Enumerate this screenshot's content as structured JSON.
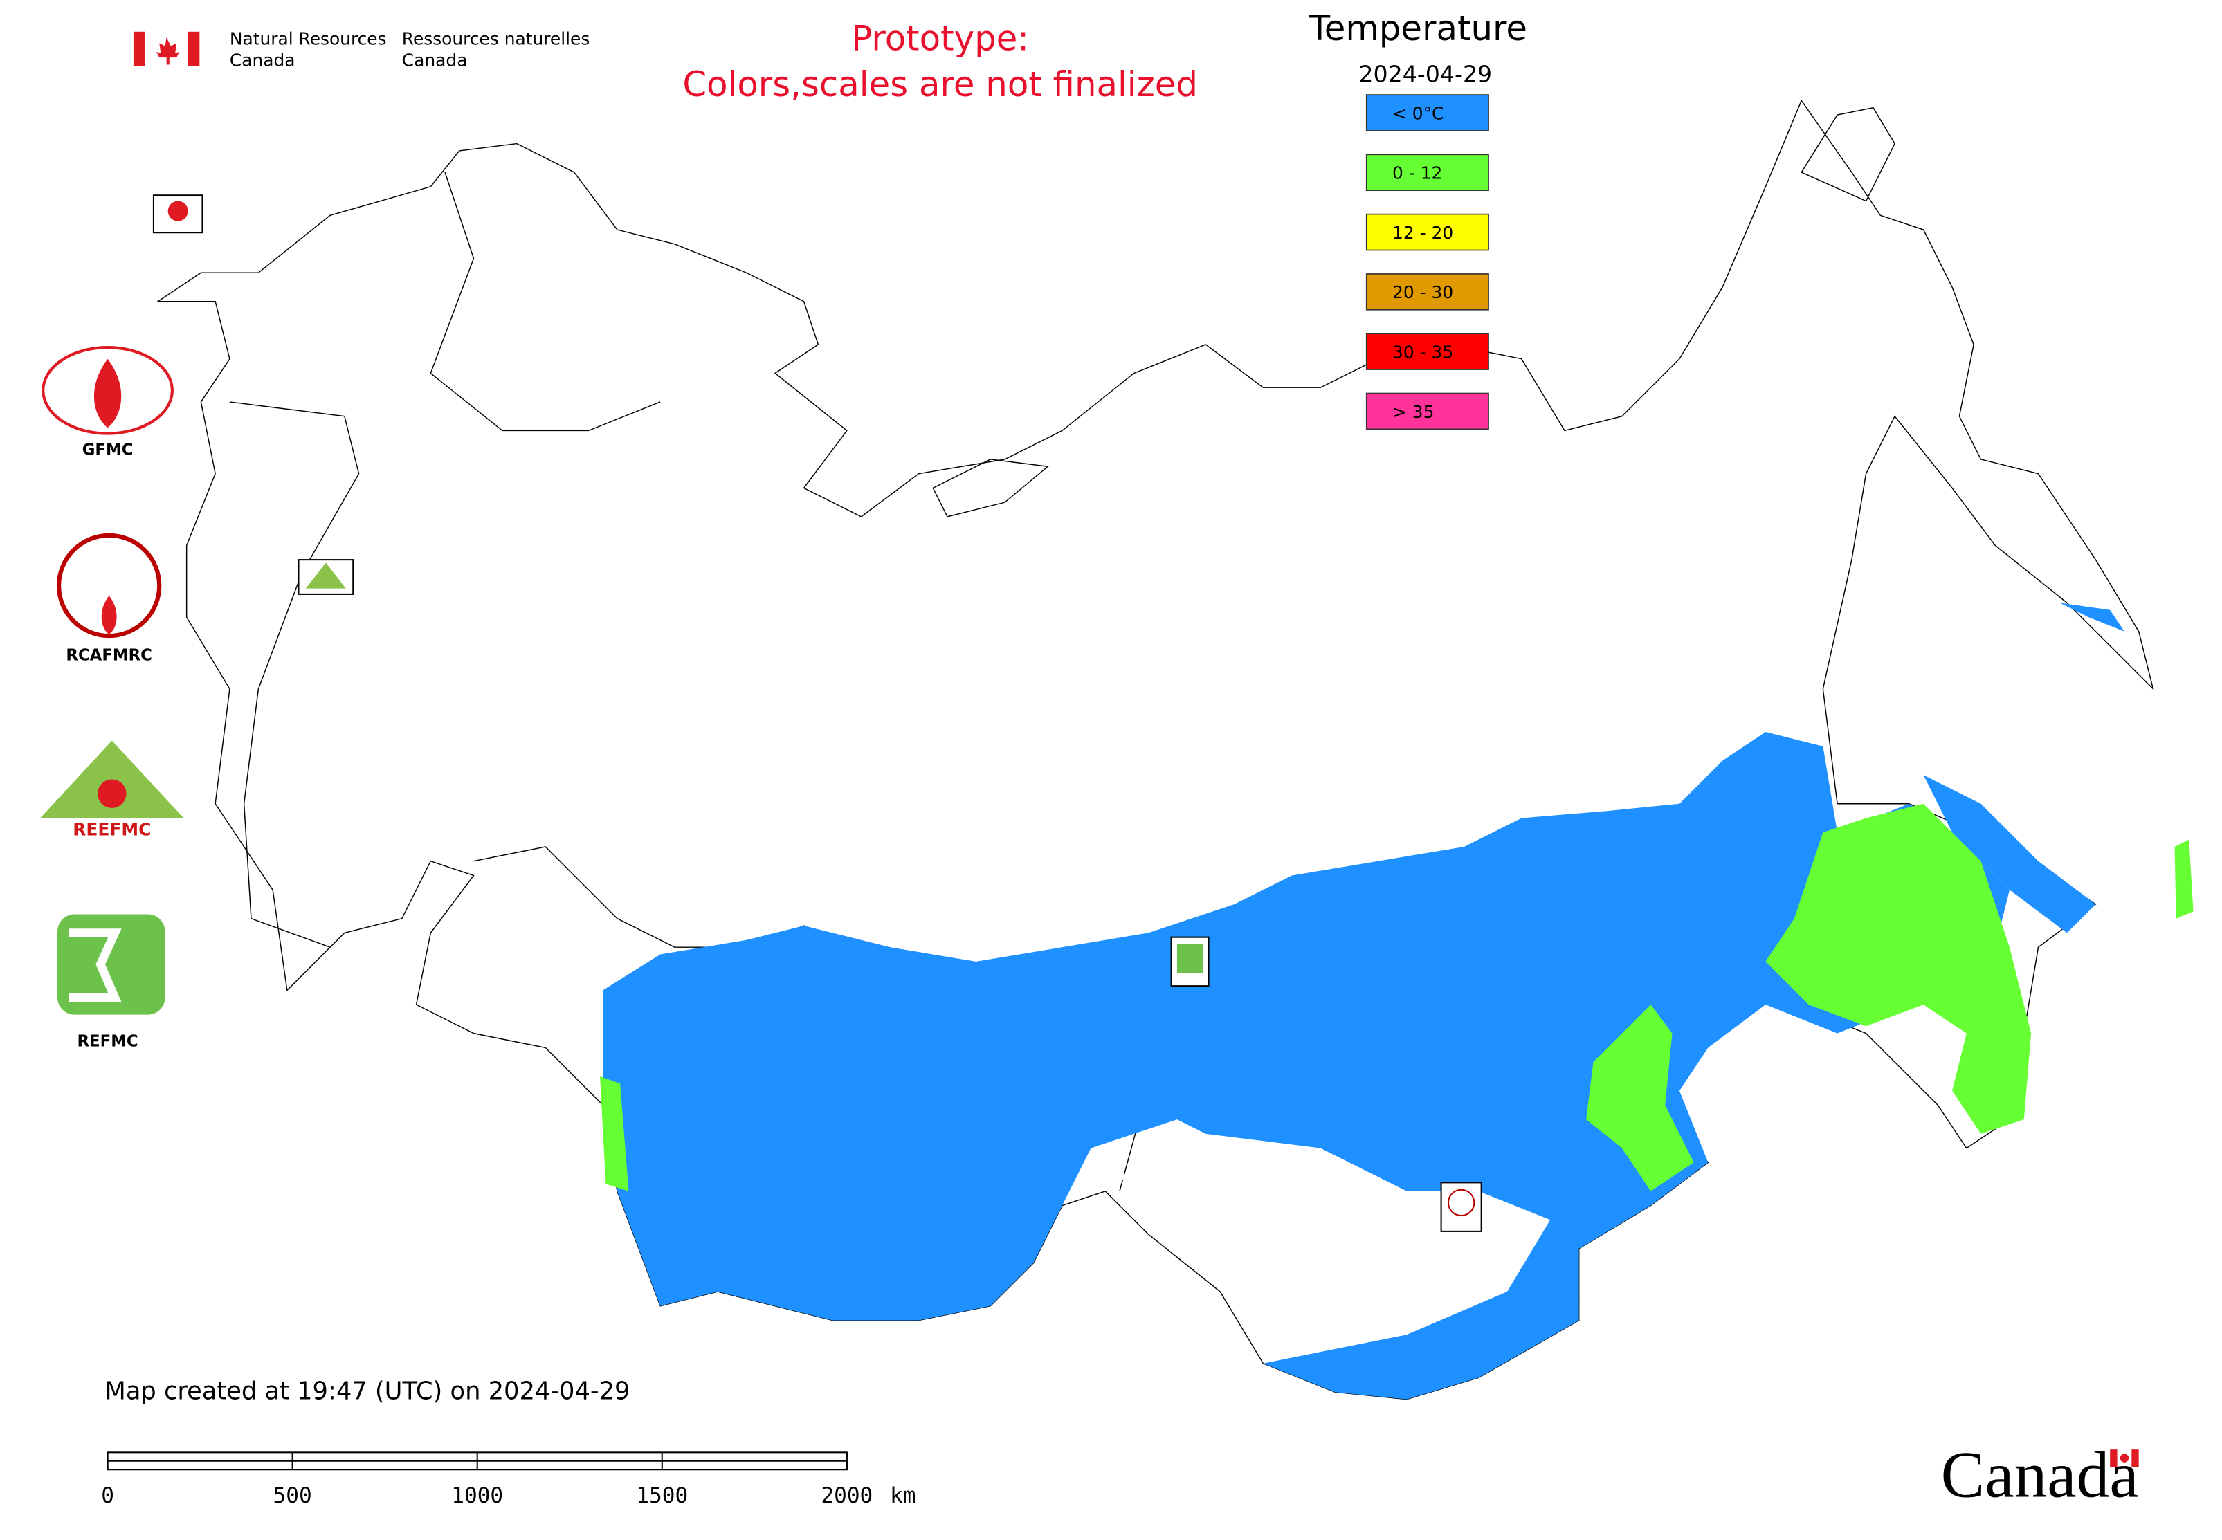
{
  "header": {
    "org_en_line1": "Natural Resources",
    "org_en_line2": "Canada",
    "org_fr_line1": "Ressources naturelles",
    "org_fr_line2": "Canada",
    "notice_line1": "Prototype:",
    "notice_line2": "Colors,scales are not finalized"
  },
  "legend": {
    "title": "Temperature",
    "date": "2024-04-29",
    "items": [
      {
        "label": "< 0°C",
        "color": "#1e90ff"
      },
      {
        "label": "0 - 12",
        "color": "#66ff33"
      },
      {
        "label": "12 - 20",
        "color": "#ffff00"
      },
      {
        "label": "20 - 30",
        "color": "#e09a00"
      },
      {
        "label": "30 - 35",
        "color": "#ff0000"
      },
      {
        "label": "> 35",
        "color": "#ff3399"
      }
    ]
  },
  "logos": [
    "GFMC",
    "RCAFMRC",
    "REEFMC",
    "REFMC"
  ],
  "footer": {
    "created": "Map created at 19:47 (UTC) on 2024-04-29",
    "wordmark": "Canada"
  },
  "scale_bar": {
    "ticks": [
      0,
      500,
      1000,
      1500,
      2000
    ],
    "unit": "km"
  }
}
